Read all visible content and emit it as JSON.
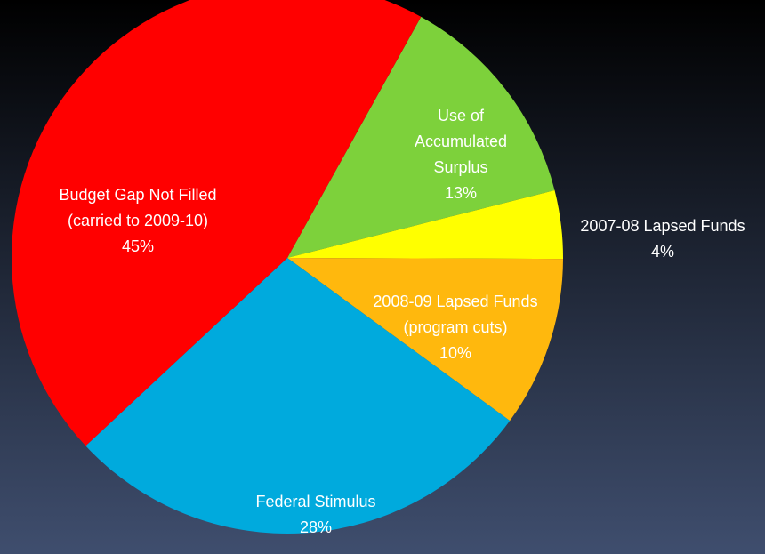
{
  "chart_data": {
    "type": "pie",
    "categories": [
      [
        "Use of",
        "Accumulated",
        "Surplus"
      ],
      [
        "2007-08 Lapsed Funds"
      ],
      [
        "2008-09 Lapsed Funds",
        "(program cuts)"
      ],
      [
        "Federal Stimulus"
      ],
      [
        "Budget Gap Not Filled",
        "(carried to 2009-10)"
      ]
    ],
    "values": [
      13,
      4,
      10,
      28,
      45
    ],
    "value_labels": [
      "13%",
      "4%",
      "10%",
      "28%",
      "45%"
    ],
    "colors": [
      "#7dd13b",
      "#ffff00",
      "#ffb80d",
      "#00aadd",
      "#ff0000"
    ]
  }
}
